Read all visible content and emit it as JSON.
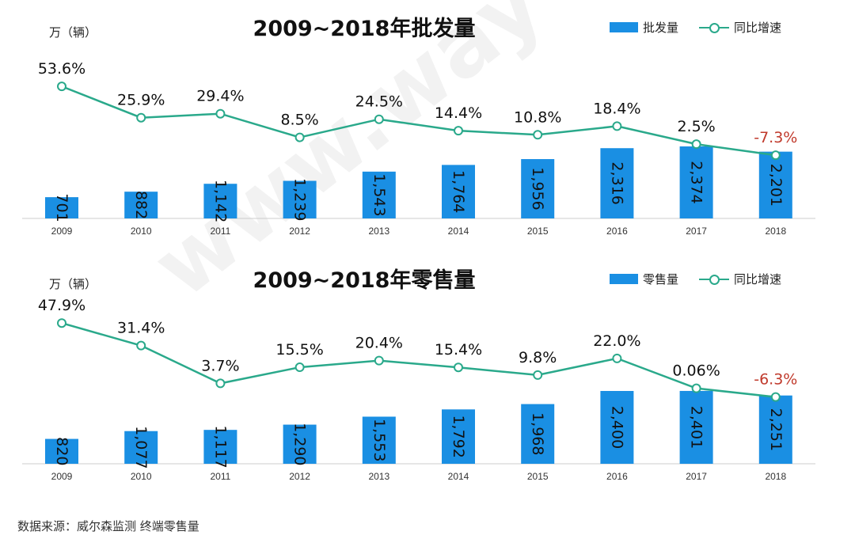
{
  "watermark": "www.way-s.cn",
  "source": "数据来源：威尔森监测 终端零售量",
  "colors": {
    "bar": "#1a8fe3",
    "line": "#2aa98b",
    "negative": "#c0392b",
    "axis": "#cccccc"
  },
  "chart_data": [
    {
      "type": "bar+line",
      "title": "2009~2018年批发量",
      "unit": "万（辆）",
      "categories": [
        "2009",
        "2010",
        "2011",
        "2012",
        "2013",
        "2014",
        "2015",
        "2016",
        "2017",
        "2018"
      ],
      "series": [
        {
          "name": "批发量",
          "kind": "bar",
          "values": [
            701,
            882,
            1142,
            1239,
            1543,
            1764,
            1956,
            2316,
            2374,
            2201
          ],
          "labels": [
            "701",
            "882",
            "1,142",
            "1,239",
            "1,543",
            "1,764",
            "1,956",
            "2,316",
            "2,374",
            "2,201"
          ]
        },
        {
          "name": "同比增速",
          "kind": "line",
          "values": [
            53.6,
            25.9,
            29.4,
            8.5,
            24.5,
            14.4,
            10.8,
            18.4,
            2.5,
            -7.3
          ],
          "labels": [
            "53.6%",
            "25.9%",
            "29.4%",
            "8.5%",
            "24.5%",
            "14.4%",
            "10.8%",
            "18.4%",
            "2.5%",
            "-7.3%"
          ]
        }
      ]
    },
    {
      "type": "bar+line",
      "title": "2009~2018年零售量",
      "unit": "万（辆）",
      "categories": [
        "2009",
        "2010",
        "2011",
        "2012",
        "2013",
        "2014",
        "2015",
        "2016",
        "2017",
        "2018"
      ],
      "series": [
        {
          "name": "零售量",
          "kind": "bar",
          "values": [
            820,
            1077,
            1117,
            1290,
            1553,
            1792,
            1968,
            2400,
            2401,
            2251
          ],
          "labels": [
            "820",
            "1,077",
            "1,117",
            "1,290",
            "1,553",
            "1,792",
            "1,968",
            "2,400",
            "2,401",
            "2,251"
          ]
        },
        {
          "name": "同比增速",
          "kind": "line",
          "values": [
            47.9,
            31.4,
            3.7,
            15.5,
            20.4,
            15.4,
            9.8,
            22.0,
            0.06,
            -6.3
          ],
          "labels": [
            "47.9%",
            "31.4%",
            "3.7%",
            "15.5%",
            "20.4%",
            "15.4%",
            "9.8%",
            "22.0%",
            "0.06%",
            "-6.3%"
          ]
        }
      ]
    }
  ]
}
